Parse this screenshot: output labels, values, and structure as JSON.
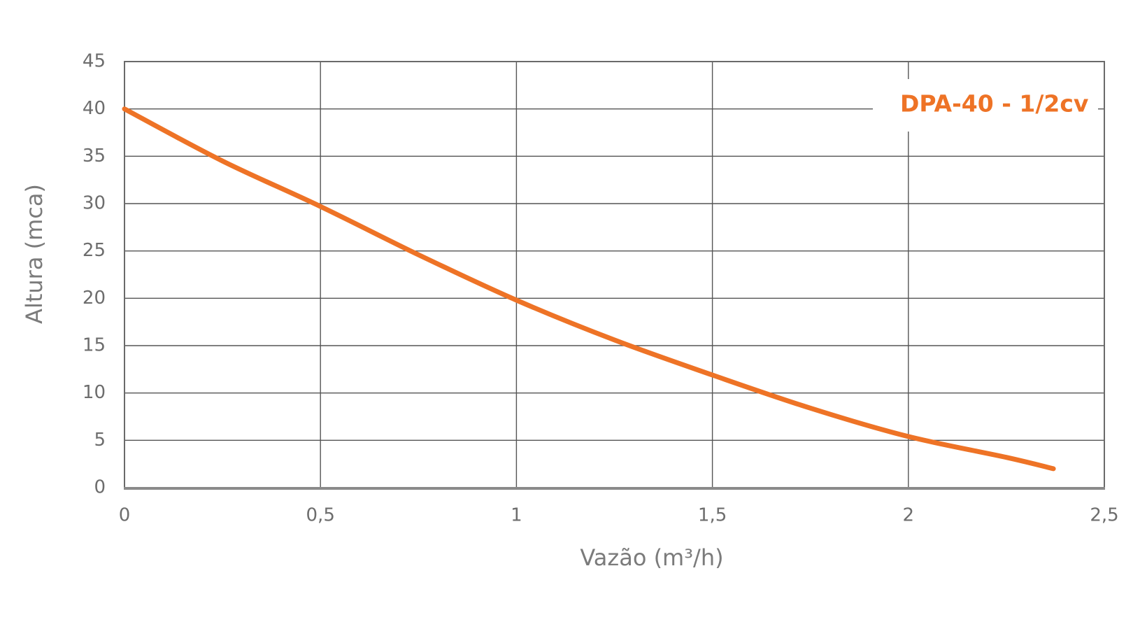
{
  "chart_data": {
    "type": "line",
    "xlabel": "Vazão (m³/h)",
    "ylabel": "Altura (mca)",
    "xlim": [
      0,
      2.5
    ],
    "ylim": [
      0,
      45
    ],
    "grid": true,
    "x_ticks": [
      "0",
      "0,5",
      "1",
      "1,5",
      "2",
      "2,5"
    ],
    "y_ticks": [
      "0",
      "5",
      "10",
      "15",
      "20",
      "25",
      "30",
      "35",
      "40",
      "45"
    ],
    "series": [
      {
        "name": "DPA-40 - 1/2cv",
        "color": "#ee7326",
        "x": [
          0,
          0.25,
          0.5,
          0.75,
          1.0,
          1.25,
          1.5,
          1.75,
          2.0,
          2.25,
          2.37
        ],
        "y": [
          40,
          34.5,
          29.7,
          24.6,
          19.8,
          15.6,
          11.9,
          8.4,
          5.4,
          3.2,
          2.0
        ]
      }
    ],
    "legend_position": "top-right"
  }
}
